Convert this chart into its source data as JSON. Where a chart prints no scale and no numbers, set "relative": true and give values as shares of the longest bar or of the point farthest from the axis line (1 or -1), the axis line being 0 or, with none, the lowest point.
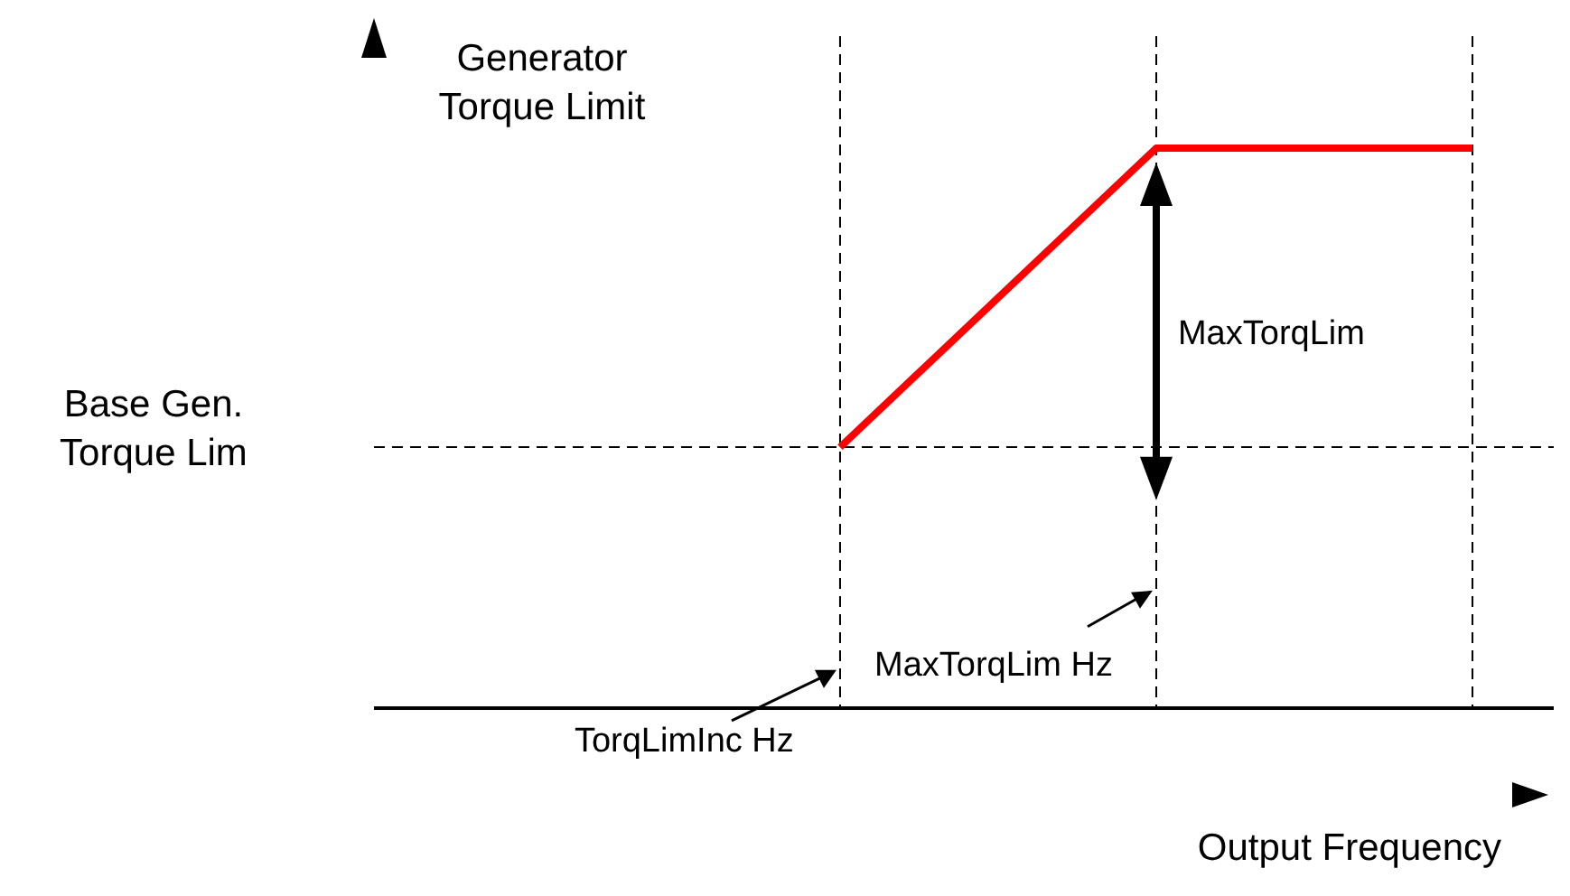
{
  "chart_data": {
    "type": "line",
    "relative": true,
    "ylabel": "Generator Torque Limit",
    "xlabel": "Output Frequency",
    "categories": [
      null,
      null,
      null
    ],
    "series": [
      {
        "color": "#ff0000",
        "values": [
          0.466,
          1,
          1
        ]
      }
    ],
    "grid": "x",
    "line_style": "solid",
    "marker": "none",
    "ref_lines": [
      {
        "axis": "y",
        "value": 0.466,
        "label": "Base Gen. Torque Lim",
        "line_style": "dashed"
      }
    ],
    "annotations": [
      "MaxTorqLim",
      "MaxTorqLim Hz",
      "TorqLimInc Hz"
    ]
  }
}
